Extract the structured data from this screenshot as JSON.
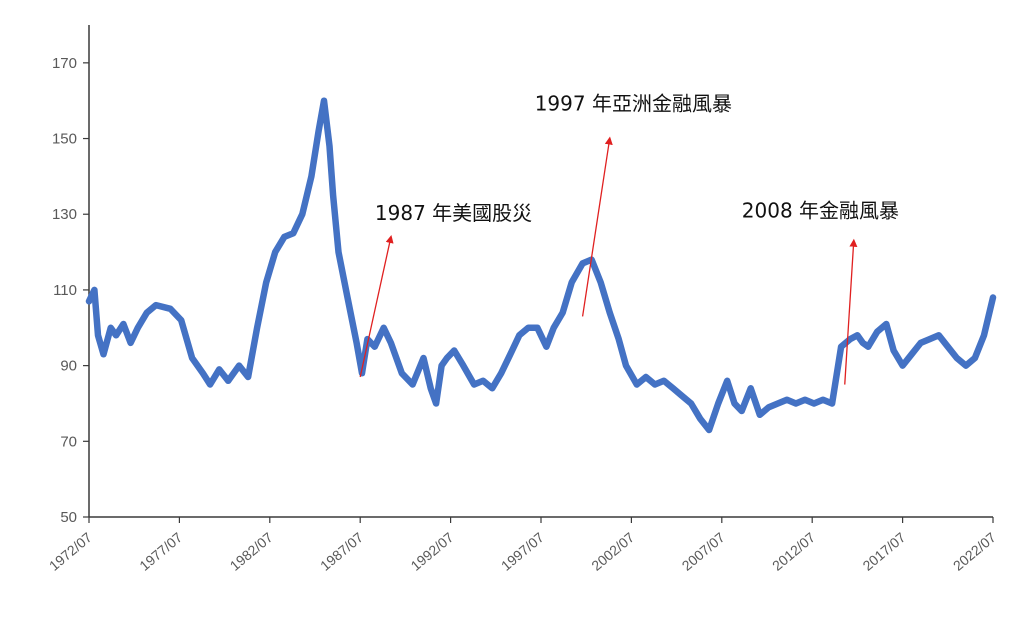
{
  "chart_data": {
    "type": "line",
    "title": "",
    "xlabel": "",
    "ylabel": "",
    "x_tick_labels": [
      "1972/07",
      "1977/07",
      "1982/07",
      "1987/07",
      "1992/07",
      "1997/07",
      "2002/07",
      "2007/07",
      "2012/07",
      "2017/07",
      "2022/07"
    ],
    "y_ticks": [
      50,
      70,
      90,
      110,
      130,
      150,
      170
    ],
    "ylim": [
      50,
      180
    ],
    "xlim": [
      1972.5,
      2022.5
    ],
    "grid": false,
    "legend": "none",
    "line_color": "#4472C4",
    "annotation_color": "#E02020",
    "series": [
      {
        "name": "",
        "x": [
          1972.5,
          1972.8,
          1973.0,
          1973.3,
          1973.7,
          1974.0,
          1974.4,
          1974.8,
          1975.2,
          1975.7,
          1976.2,
          1977.0,
          1977.6,
          1978.2,
          1978.8,
          1979.2,
          1979.7,
          1980.2,
          1980.8,
          1981.3,
          1981.8,
          1982.3,
          1982.8,
          1983.3,
          1983.8,
          1984.3,
          1984.8,
          1985.2,
          1985.5,
          1985.8,
          1986.0,
          1986.3,
          1986.8,
          1987.3,
          1987.6,
          1987.9,
          1988.3,
          1988.8,
          1989.2,
          1989.8,
          1990.4,
          1991.0,
          1991.4,
          1991.7,
          1992.0,
          1992.3,
          1992.7,
          1993.2,
          1993.8,
          1994.3,
          1994.8,
          1995.3,
          1995.8,
          1996.3,
          1996.8,
          1997.3,
          1997.8,
          1998.2,
          1998.7,
          1999.2,
          1999.8,
          2000.3,
          2000.8,
          2001.3,
          2001.8,
          2002.2,
          2002.8,
          2003.3,
          2003.8,
          2004.3,
          2004.8,
          2005.3,
          2005.8,
          2006.3,
          2006.8,
          2007.3,
          2007.8,
          2008.2,
          2008.6,
          2009.1,
          2009.6,
          2010.1,
          2010.6,
          2011.1,
          2011.6,
          2012.1,
          2012.6,
          2013.1,
          2013.6,
          2014.1,
          2014.6,
          2015.0,
          2015.3,
          2015.6,
          2016.1,
          2016.6,
          2017.0,
          2017.5,
          2018.0,
          2018.5,
          2019.0,
          2019.5,
          2020.0,
          2020.5,
          2021.0,
          2021.5,
          2022.0,
          2022.5
        ],
        "values": [
          107,
          110,
          98,
          93,
          100,
          98,
          101,
          96,
          100,
          104,
          106,
          105,
          102,
          92,
          88,
          85,
          89,
          86,
          90,
          87,
          100,
          112,
          120,
          124,
          125,
          130,
          140,
          152,
          160,
          148,
          135,
          120,
          108,
          96,
          88,
          97,
          95,
          100,
          96,
          88,
          85,
          92,
          84,
          80,
          90,
          92,
          94,
          90,
          85,
          86,
          84,
          88,
          93,
          98,
          100,
          100,
          95,
          100,
          104,
          112,
          117,
          118,
          112,
          104,
          97,
          90,
          85,
          87,
          85,
          86,
          84,
          82,
          80,
          76,
          73,
          80,
          86,
          80,
          78,
          84,
          77,
          79,
          80,
          81,
          80,
          81,
          80,
          81,
          80,
          95,
          97,
          98,
          96,
          95,
          99,
          101,
          94,
          90,
          93,
          96,
          97,
          98,
          95,
          92,
          90,
          92,
          98,
          108
        ]
      }
    ],
    "annotations": [
      {
        "text": "1987 年美國股災",
        "x_from": 1987.5,
        "y_from": 87,
        "x_to": 1989.2,
        "y_to": 124
      },
      {
        "text": "1997 年亞洲金融風暴",
        "x_from": 1999.8,
        "y_from": 103,
        "x_to": 2001.3,
        "y_to": 150
      },
      {
        "text": "2008 年金融風暴",
        "x_from": 2014.3,
        "y_from": 85,
        "x_to": 2014.8,
        "y_to": 123
      }
    ]
  }
}
